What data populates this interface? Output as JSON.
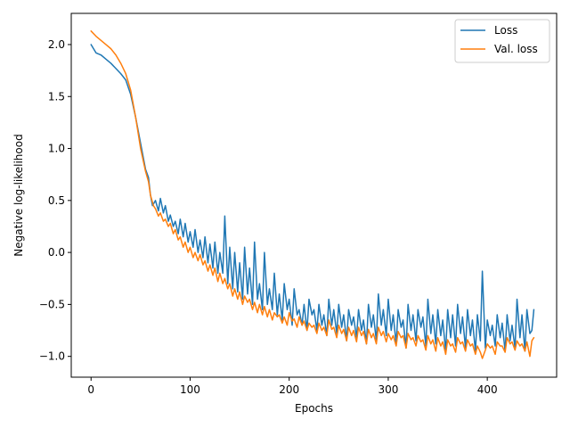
{
  "chart_data": {
    "type": "line",
    "title": "",
    "xlabel": "Epochs",
    "ylabel": "Negative log-likelihood",
    "xlim": [
      -20,
      470
    ],
    "ylim": [
      -1.2,
      2.3
    ],
    "xticks": [
      0,
      100,
      200,
      300,
      400
    ],
    "yticks": [
      -1.0,
      -0.5,
      0.0,
      0.5,
      1.0,
      1.5,
      2.0
    ],
    "xtick_labels": [
      "0",
      "100",
      "200",
      "300",
      "400"
    ],
    "ytick_labels": [
      "−1.0",
      "−0.5",
      "0.0",
      "0.5",
      "1.0",
      "1.5",
      "2.0"
    ],
    "grid": false,
    "legend_position": "top-right",
    "series": [
      {
        "name": "Loss",
        "color": "#1f77b4",
        "x": [
          0,
          5,
          10,
          15,
          20,
          25,
          30,
          35,
          40,
          45,
          50,
          55,
          58,
          60,
          62,
          65,
          68,
          70,
          73,
          75,
          78,
          80,
          83,
          85,
          88,
          90,
          93,
          95,
          98,
          100,
          103,
          105,
          108,
          110,
          113,
          115,
          118,
          120,
          123,
          125,
          128,
          130,
          133,
          135,
          138,
          140,
          143,
          145,
          148,
          150,
          153,
          155,
          158,
          160,
          163,
          165,
          168,
          170,
          173,
          175,
          178,
          180,
          183,
          185,
          188,
          190,
          193,
          195,
          198,
          200,
          203,
          205,
          208,
          210,
          213,
          215,
          218,
          220,
          223,
          225,
          228,
          230,
          233,
          235,
          238,
          240,
          243,
          245,
          248,
          250,
          253,
          255,
          258,
          260,
          263,
          265,
          268,
          270,
          273,
          275,
          278,
          280,
          283,
          285,
          288,
          290,
          293,
          295,
          298,
          300,
          303,
          305,
          308,
          310,
          313,
          315,
          318,
          320,
          323,
          325,
          328,
          330,
          333,
          335,
          338,
          340,
          343,
          345,
          348,
          350,
          353,
          355,
          358,
          360,
          363,
          365,
          368,
          370,
          373,
          375,
          378,
          380,
          383,
          385,
          388,
          390,
          393,
          395,
          398,
          400,
          403,
          405,
          408,
          410,
          413,
          415,
          418,
          420,
          423,
          425,
          428,
          430,
          433,
          435,
          438,
          440,
          443,
          445,
          447
        ],
        "values": [
          2.0,
          1.92,
          1.9,
          1.86,
          1.82,
          1.77,
          1.72,
          1.66,
          1.52,
          1.3,
          1.05,
          0.8,
          0.72,
          0.55,
          0.45,
          0.5,
          0.4,
          0.52,
          0.38,
          0.45,
          0.3,
          0.36,
          0.25,
          0.3,
          0.18,
          0.32,
          0.15,
          0.28,
          0.1,
          0.2,
          0.05,
          0.22,
          0.0,
          0.12,
          -0.05,
          0.15,
          -0.1,
          0.08,
          -0.15,
          0.1,
          -0.2,
          0.0,
          -0.2,
          0.35,
          -0.3,
          0.05,
          -0.35,
          0.0,
          -0.38,
          -0.1,
          -0.45,
          0.05,
          -0.4,
          -0.15,
          -0.5,
          0.1,
          -0.45,
          -0.3,
          -0.55,
          0.0,
          -0.5,
          -0.35,
          -0.55,
          -0.2,
          -0.6,
          -0.4,
          -0.65,
          -0.3,
          -0.55,
          -0.45,
          -0.7,
          -0.35,
          -0.6,
          -0.55,
          -0.7,
          -0.5,
          -0.75,
          -0.45,
          -0.6,
          -0.55,
          -0.75,
          -0.5,
          -0.7,
          -0.6,
          -0.8,
          -0.45,
          -0.7,
          -0.55,
          -0.78,
          -0.5,
          -0.72,
          -0.6,
          -0.85,
          -0.55,
          -0.7,
          -0.62,
          -0.82,
          -0.55,
          -0.75,
          -0.65,
          -0.88,
          -0.5,
          -0.72,
          -0.6,
          -0.85,
          -0.4,
          -0.7,
          -0.55,
          -0.8,
          -0.45,
          -0.75,
          -0.6,
          -0.88,
          -0.55,
          -0.72,
          -0.65,
          -0.92,
          -0.5,
          -0.75,
          -0.6,
          -0.85,
          -0.55,
          -0.72,
          -0.62,
          -0.9,
          -0.45,
          -0.78,
          -0.6,
          -0.88,
          -0.55,
          -0.8,
          -0.65,
          -0.95,
          -0.55,
          -0.82,
          -0.6,
          -0.9,
          -0.5,
          -0.78,
          -0.62,
          -0.92,
          -0.55,
          -0.8,
          -0.65,
          -0.95,
          -0.6,
          -0.85,
          -0.18,
          -0.92,
          -0.65,
          -0.8,
          -0.7,
          -0.9,
          -0.6,
          -0.82,
          -0.68,
          -0.95,
          -0.6,
          -0.85,
          -0.7,
          -0.92,
          -0.45,
          -0.82,
          -0.6,
          -0.95,
          -0.55,
          -0.78,
          -0.75,
          -0.55
        ]
      },
      {
        "name": "Val. loss",
        "color": "#ff7f0e",
        "x": [
          0,
          5,
          10,
          15,
          20,
          25,
          30,
          35,
          40,
          45,
          50,
          55,
          58,
          60,
          63,
          65,
          68,
          70,
          73,
          75,
          78,
          80,
          83,
          85,
          88,
          90,
          93,
          95,
          98,
          100,
          103,
          105,
          108,
          110,
          113,
          115,
          118,
          120,
          123,
          125,
          128,
          130,
          133,
          135,
          138,
          140,
          143,
          145,
          148,
          150,
          153,
          155,
          158,
          160,
          163,
          165,
          168,
          170,
          173,
          175,
          178,
          180,
          183,
          185,
          188,
          190,
          193,
          195,
          198,
          200,
          203,
          205,
          208,
          210,
          213,
          215,
          218,
          220,
          223,
          225,
          228,
          230,
          233,
          235,
          238,
          240,
          243,
          245,
          248,
          250,
          253,
          255,
          258,
          260,
          263,
          265,
          268,
          270,
          273,
          275,
          278,
          280,
          283,
          285,
          288,
          290,
          293,
          295,
          298,
          300,
          303,
          305,
          308,
          310,
          313,
          315,
          318,
          320,
          323,
          325,
          328,
          330,
          333,
          335,
          338,
          340,
          343,
          345,
          348,
          350,
          353,
          355,
          358,
          360,
          363,
          365,
          368,
          370,
          373,
          375,
          378,
          380,
          383,
          385,
          388,
          390,
          393,
          395,
          398,
          400,
          403,
          405,
          408,
          410,
          413,
          415,
          418,
          420,
          423,
          425,
          428,
          430,
          433,
          435,
          438,
          440,
          443,
          445,
          447
        ],
        "values": [
          2.13,
          2.08,
          2.04,
          2.0,
          1.96,
          1.9,
          1.82,
          1.72,
          1.56,
          1.3,
          1.0,
          0.78,
          0.68,
          0.55,
          0.45,
          0.42,
          0.35,
          0.38,
          0.3,
          0.32,
          0.25,
          0.28,
          0.18,
          0.22,
          0.12,
          0.15,
          0.05,
          0.1,
          0.0,
          0.05,
          -0.05,
          0.0,
          -0.08,
          -0.02,
          -0.12,
          -0.08,
          -0.18,
          -0.12,
          -0.22,
          -0.15,
          -0.28,
          -0.2,
          -0.3,
          -0.25,
          -0.35,
          -0.3,
          -0.42,
          -0.35,
          -0.45,
          -0.38,
          -0.5,
          -0.42,
          -0.48,
          -0.45,
          -0.55,
          -0.48,
          -0.58,
          -0.5,
          -0.6,
          -0.52,
          -0.62,
          -0.55,
          -0.65,
          -0.58,
          -0.62,
          -0.6,
          -0.68,
          -0.62,
          -0.7,
          -0.58,
          -0.66,
          -0.64,
          -0.72,
          -0.62,
          -0.7,
          -0.66,
          -0.75,
          -0.68,
          -0.72,
          -0.7,
          -0.78,
          -0.68,
          -0.75,
          -0.72,
          -0.8,
          -0.65,
          -0.74,
          -0.72,
          -0.82,
          -0.7,
          -0.78,
          -0.74,
          -0.85,
          -0.72,
          -0.8,
          -0.75,
          -0.86,
          -0.72,
          -0.8,
          -0.76,
          -0.88,
          -0.74,
          -0.82,
          -0.78,
          -0.88,
          -0.72,
          -0.8,
          -0.76,
          -0.86,
          -0.78,
          -0.84,
          -0.8,
          -0.9,
          -0.76,
          -0.82,
          -0.8,
          -0.92,
          -0.78,
          -0.84,
          -0.82,
          -0.9,
          -0.8,
          -0.86,
          -0.84,
          -0.94,
          -0.8,
          -0.88,
          -0.84,
          -0.95,
          -0.82,
          -0.9,
          -0.86,
          -0.98,
          -0.84,
          -0.9,
          -0.88,
          -0.96,
          -0.82,
          -0.88,
          -0.86,
          -0.95,
          -0.84,
          -0.9,
          -0.88,
          -0.98,
          -0.9,
          -0.96,
          -1.02,
          -0.94,
          -0.88,
          -0.92,
          -0.9,
          -0.98,
          -0.86,
          -0.9,
          -0.9,
          -0.96,
          -0.82,
          -0.88,
          -0.86,
          -0.94,
          -0.85,
          -0.9,
          -0.88,
          -0.95,
          -0.86,
          -1.0,
          -0.85,
          -0.82
        ]
      }
    ]
  }
}
